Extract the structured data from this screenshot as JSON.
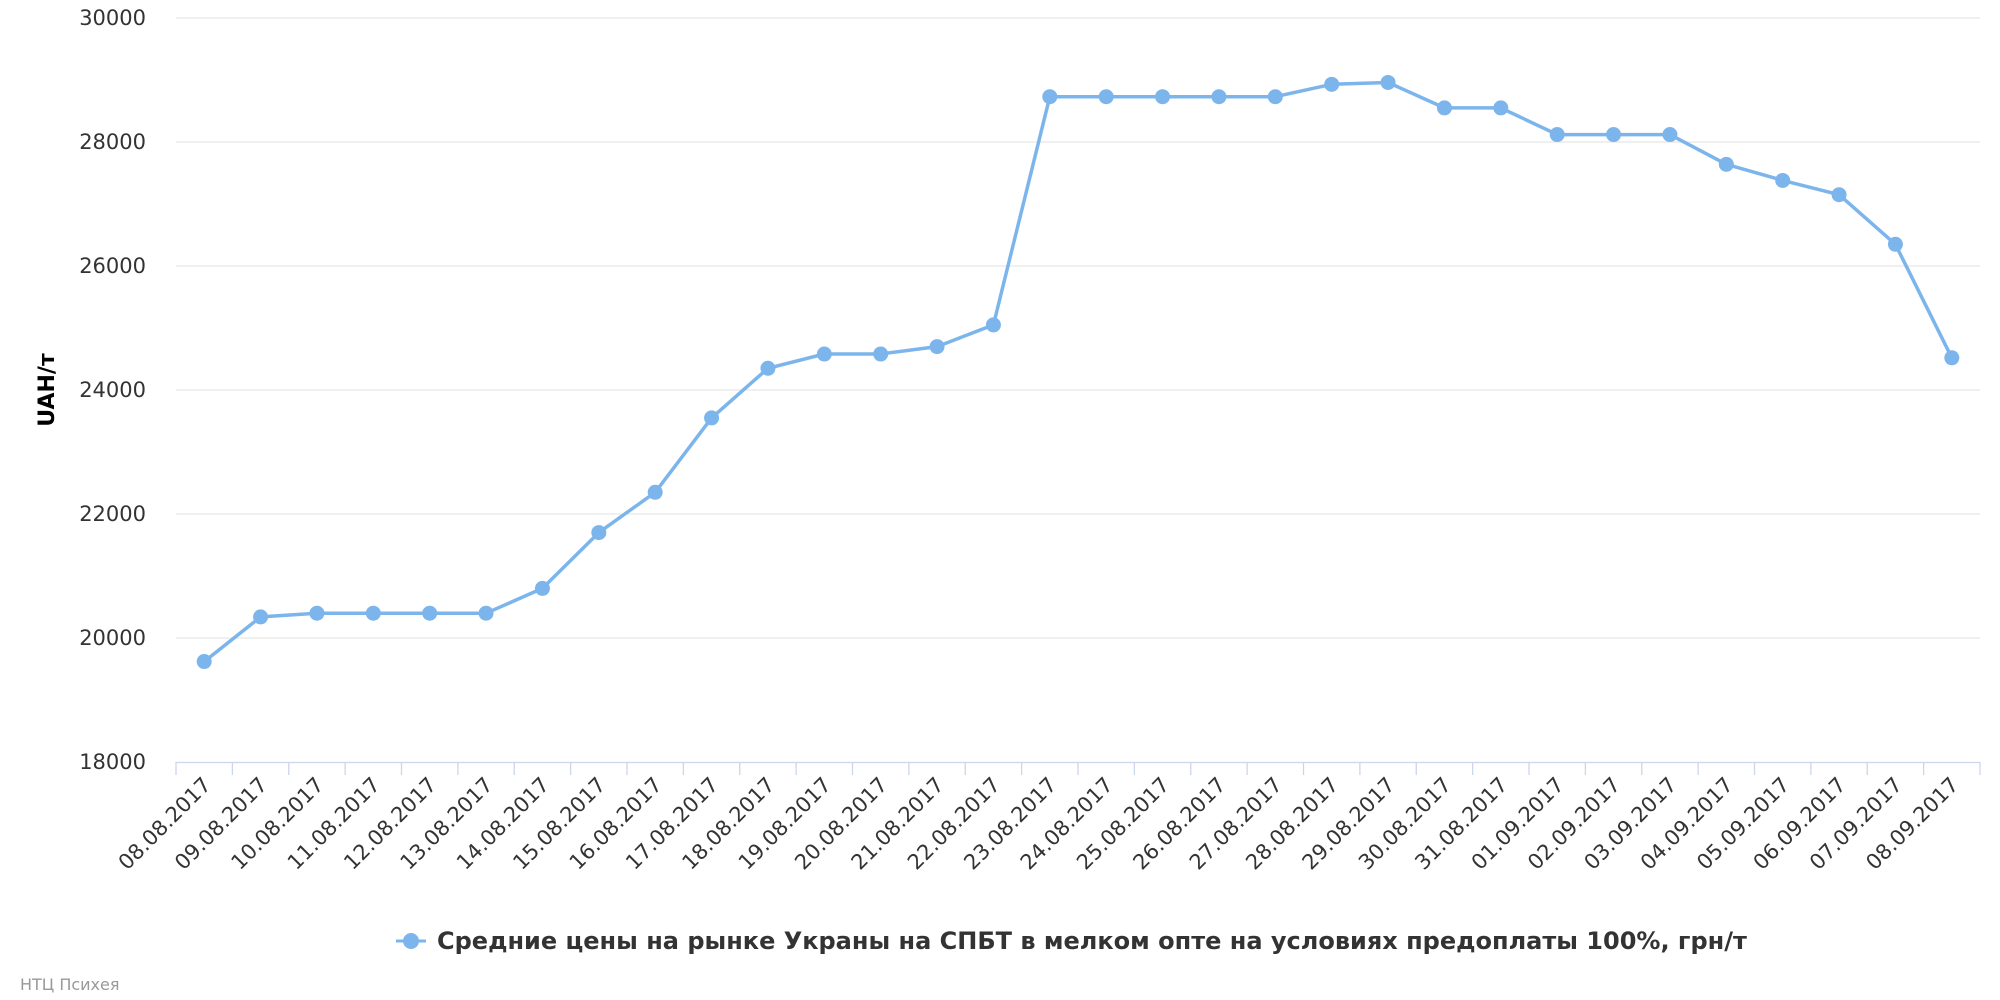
{
  "chart_data": {
    "type": "line",
    "ylabel": "UAH/т",
    "ylim": [
      18000,
      30000
    ],
    "yticks": [
      18000,
      20000,
      22000,
      24000,
      26000,
      28000,
      30000
    ],
    "grid": true,
    "legend_position": "bottom-center",
    "categories": [
      "08.08.2017",
      "09.08.2017",
      "10.08.2017",
      "11.08.2017",
      "12.08.2017",
      "13.08.2017",
      "14.08.2017",
      "15.08.2017",
      "16.08.2017",
      "17.08.2017",
      "18.08.2017",
      "19.08.2017",
      "20.08.2017",
      "21.08.2017",
      "22.08.2017",
      "23.08.2017",
      "24.08.2017",
      "25.08.2017",
      "26.08.2017",
      "27.08.2017",
      "28.08.2017",
      "29.08.2017",
      "30.08.2017",
      "31.08.2017",
      "01.09.2017",
      "02.09.2017",
      "03.09.2017",
      "04.09.2017",
      "05.09.2017",
      "06.09.2017",
      "07.09.2017",
      "08.09.2017"
    ],
    "series": [
      {
        "name": "Средние цены на рынке Украны на СПБТ в мелком опте на условиях предоплаты 100%, грн/т",
        "color": "#7cb5ec",
        "values": [
          19620,
          20340,
          20400,
          20400,
          20400,
          20400,
          20800,
          21700,
          22350,
          23550,
          24350,
          24580,
          24580,
          24700,
          25050,
          28730,
          28730,
          28730,
          28730,
          28730,
          28930,
          28960,
          28550,
          28550,
          28120,
          28120,
          28120,
          27640,
          27380,
          27150,
          26350,
          24520
        ]
      }
    ]
  },
  "credits": "НТЦ Психея"
}
